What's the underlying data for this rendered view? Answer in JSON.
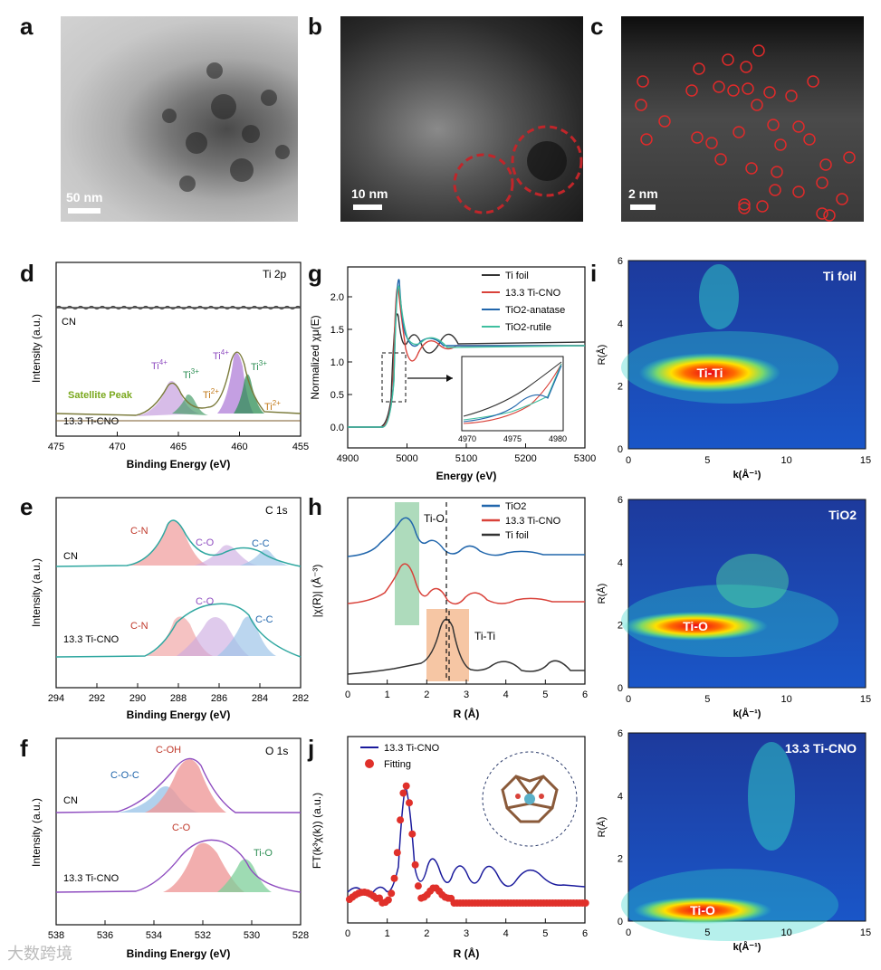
{
  "panels": {
    "a": {
      "label": "a",
      "scale": "50 nm"
    },
    "b": {
      "label": "b",
      "scale": "10 nm"
    },
    "c": {
      "label": "c",
      "scale": "2 nm"
    },
    "d": {
      "label": "d",
      "title": "Ti 2p",
      "ylabel": "Intensity (a.u.)",
      "xlabel": "Binding Energy (eV)",
      "top_sample": "CN",
      "bottom_sample": "13.3 Ti-CNO",
      "satellite": "Satellite Peak",
      "ti4a": "Ti",
      "ti4a_sup": "4+",
      "ti3a": "Ti",
      "ti3a_sup": "3+",
      "ti2a": "Ti",
      "ti2a_sup": "2+",
      "ti4b": "Ti",
      "ti4b_sup": "4+",
      "ti3b": "Ti",
      "ti3b_sup": "3+",
      "ti2b": "Ti",
      "ti2b_sup": "2+",
      "xticks": [
        "475",
        "470",
        "465",
        "460",
        "455"
      ]
    },
    "e": {
      "label": "e",
      "title": "C 1s",
      "ylabel": "Intensity (a.u.)",
      "xlabel": "Binding Energy (eV)",
      "top_sample": "CN",
      "bottom_sample": "13.3 Ti-CNO",
      "cn1": "C-N",
      "co1": "C-O",
      "cc1": "C-C",
      "cn2": "C-N",
      "co2": "C-O",
      "cc2": "C-C",
      "xticks": [
        "294",
        "292",
        "290",
        "288",
        "286",
        "284",
        "282"
      ]
    },
    "f": {
      "label": "f",
      "title": "O 1s",
      "ylabel": "Intensity (a.u.)",
      "xlabel": "Binding Energy (eV)",
      "top_sample": "CN",
      "bottom_sample": "13.3 Ti-CNO",
      "coh": "C-OH",
      "coc": "C-O-C",
      "co": "C-O",
      "tio": "Ti-O",
      "xticks": [
        "538",
        "536",
        "534",
        "532",
        "530",
        "528"
      ]
    },
    "g": {
      "label": "g",
      "ylabel": "Normalized χμ(E)",
      "xlabel": "Energy (eV)",
      "legend": [
        "Ti foil",
        "13.3 Ti-CNO",
        "TiO2-anatase",
        "TiO2-rutile"
      ],
      "xticks": [
        "4900",
        "5000",
        "5100",
        "5200",
        "5300"
      ],
      "yticks": [
        "0.0",
        "0.5",
        "1.0",
        "1.5",
        "2.0"
      ],
      "inset_xticks": [
        "4970",
        "4975",
        "4980"
      ]
    },
    "h": {
      "label": "h",
      "ylabel": "|χ(R)| (Å⁻³)",
      "xlabel": "R (Å)",
      "legend": [
        "TiO2",
        "13.3 Ti-CNO",
        "Ti foil"
      ],
      "tio": "Ti-O",
      "titi": "Ti-Ti",
      "xticks": [
        "0",
        "1",
        "2",
        "3",
        "4",
        "5",
        "6"
      ]
    },
    "i": {
      "label": "i",
      "maps": [
        {
          "title": "Ti foil",
          "spot": "Ti-Ti"
        },
        {
          "title": "TiO2",
          "spot": "Ti-O"
        },
        {
          "title": "13.3 Ti-CNO",
          "spot": "Ti-O"
        }
      ],
      "ylabel": "R(Å)",
      "xlabel": "k(Å⁻¹)",
      "xticks": [
        "0",
        "5",
        "10",
        "15"
      ],
      "yticks": [
        "0",
        "2",
        "4",
        "6"
      ]
    },
    "j": {
      "label": "j",
      "ylabel": "FT(k³χ(k)) (a.u.)",
      "xlabel": "R (Å)",
      "legend": [
        "13.3 Ti-CNO",
        "Fitting"
      ],
      "xticks": [
        "0",
        "1",
        "2",
        "3",
        "4",
        "5",
        "6"
      ]
    }
  },
  "watermark": "大数跨境",
  "colors": {
    "ti_foil": "#333333",
    "ti_cno": "#d9423a",
    "anatase": "#2166ac",
    "rutile": "#3fbf9f",
    "navy": "#1a1a9c",
    "fit": "#e0302a"
  }
}
